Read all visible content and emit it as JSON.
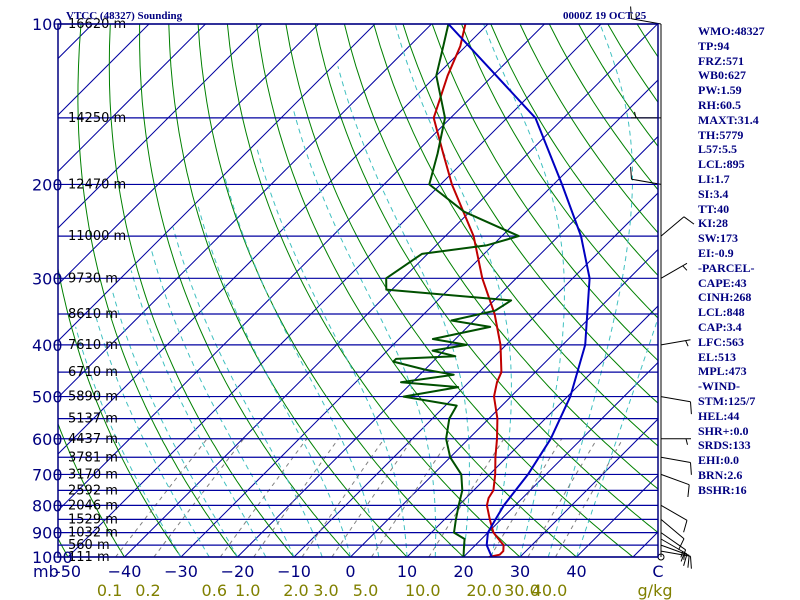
{
  "header": {
    "title": "VTCC (48327) Sounding",
    "time": "0000Z 19 OCT 25"
  },
  "colors": {
    "frame": "#000080",
    "isobar": "#0000a0",
    "isotherm": "#0000a0",
    "dry_adiabat": "#008000",
    "moist_adiabat": "#40c0c0",
    "mixing_ratio": "#808080",
    "temperature": "#c00000",
    "dewpoint": "#005000",
    "parcel": "#0000c0",
    "wind_barb": "#000000",
    "mixing_label": "#808000"
  },
  "chart_data": {
    "type": "skew-t",
    "pressure_levels": [
      100,
      200,
      300,
      400,
      500,
      600,
      700,
      800,
      900,
      1000
    ],
    "pressure_tick_labels": [
      "100",
      "200",
      "300",
      "400",
      "500",
      "600",
      "700",
      "800",
      "900",
      "1000"
    ],
    "pressure_unit": "mb",
    "temperature_ticks": [
      -50,
      -40,
      -30,
      -20,
      -10,
      0,
      10,
      20,
      30,
      40
    ],
    "temperature_tick_labels": [
      "-50",
      "−40",
      "−30",
      "−20",
      "−10",
      "0",
      "10",
      "20",
      "30",
      "40"
    ],
    "temperature_unit": "C",
    "mixing_ratio_labels": [
      "0.1",
      "0.2",
      "0.6",
      "1.0",
      "2.0",
      "3.0",
      "5.0",
      "10.0",
      "20.0",
      "30.0",
      "40.0"
    ],
    "mixing_ratio_unit": "g/kg",
    "height_labels": [
      {
        "p": 100,
        "label": "16620 m"
      },
      {
        "p": 150,
        "label": "14250 m"
      },
      {
        "p": 200,
        "label": "12470 m"
      },
      {
        "p": 250,
        "label": "11000 m"
      },
      {
        "p": 300,
        "label": "9730 m"
      },
      {
        "p": 350,
        "label": "8610 m"
      },
      {
        "p": 400,
        "label": "7610 m"
      },
      {
        "p": 450,
        "label": "6710 m"
      },
      {
        "p": 500,
        "label": "5890 m"
      },
      {
        "p": 550,
        "label": "5137 m"
      },
      {
        "p": 600,
        "label": "4437 m"
      },
      {
        "p": 650,
        "label": "3781 m"
      },
      {
        "p": 700,
        "label": "3170 m"
      },
      {
        "p": 750,
        "label": "2592 m"
      },
      {
        "p": 800,
        "label": "2046 m"
      },
      {
        "p": 850,
        "label": "1529 m"
      },
      {
        "p": 900,
        "label": "1032 m"
      },
      {
        "p": 950,
        "label": "560 m"
      },
      {
        "p": 1000,
        "label": "111 m"
      }
    ],
    "series": [
      {
        "name": "Temperature",
        "points": [
          [
            1000,
            24.5
          ],
          [
            990,
            26
          ],
          [
            975,
            26
          ],
          [
            950,
            25
          ],
          [
            925,
            23
          ],
          [
            900,
            21
          ],
          [
            875,
            19.5
          ],
          [
            850,
            18
          ],
          [
            800,
            15
          ],
          [
            775,
            14
          ],
          [
            750,
            13.5
          ],
          [
            700,
            11
          ],
          [
            650,
            8
          ],
          [
            600,
            5
          ],
          [
            550,
            1.5
          ],
          [
            500,
            -3
          ],
          [
            470,
            -5
          ],
          [
            450,
            -6
          ],
          [
            400,
            -11
          ],
          [
            350,
            -17.5
          ],
          [
            300,
            -26
          ],
          [
            250,
            -35
          ],
          [
            200,
            -48
          ],
          [
            175,
            -55
          ],
          [
            150,
            -63
          ],
          [
            125,
            -68
          ],
          [
            110,
            -71
          ],
          [
            100,
            -74
          ]
        ]
      },
      {
        "name": "Dewpoint",
        "points": [
          [
            1000,
            20
          ],
          [
            950,
            18
          ],
          [
            925,
            17
          ],
          [
            900,
            14
          ],
          [
            850,
            12
          ],
          [
            800,
            10
          ],
          [
            750,
            8
          ],
          [
            700,
            5
          ],
          [
            650,
            0
          ],
          [
            600,
            -4
          ],
          [
            550,
            -7
          ],
          [
            520,
            -8
          ],
          [
            500,
            -19
          ],
          [
            490,
            -15
          ],
          [
            480,
            -11
          ],
          [
            470,
            -22
          ],
          [
            455,
            -14
          ],
          [
            445,
            -20
          ],
          [
            430,
            -27
          ],
          [
            425,
            -27
          ],
          [
            420,
            -17
          ],
          [
            410,
            -22
          ],
          [
            400,
            -17
          ],
          [
            390,
            -24
          ],
          [
            370,
            -16
          ],
          [
            360,
            -24
          ],
          [
            345,
            -18
          ],
          [
            330,
            -17
          ],
          [
            315,
            -41
          ],
          [
            300,
            -43
          ],
          [
            270,
            -41
          ],
          [
            260,
            -31
          ],
          [
            250,
            -27
          ],
          [
            225,
            -41
          ],
          [
            200,
            -52
          ],
          [
            175,
            -56
          ],
          [
            150,
            -61
          ],
          [
            125,
            -70
          ],
          [
            110,
            -74
          ],
          [
            100,
            -77
          ]
        ]
      },
      {
        "name": "Parcel",
        "points": [
          [
            1000,
            25
          ],
          [
            950,
            22
          ],
          [
            900,
            20
          ],
          [
            850,
            19
          ],
          [
            800,
            18
          ],
          [
            700,
            16.8
          ],
          [
            600,
            14.5
          ],
          [
            500,
            10.5
          ],
          [
            400,
            4
          ],
          [
            300,
            -7
          ],
          [
            250,
            -16
          ],
          [
            200,
            -28.5
          ],
          [
            150,
            -45
          ],
          [
            100,
            -77
          ]
        ]
      }
    ],
    "winds": [
      {
        "p": 1000,
        "dir": 0,
        "spd": 0
      },
      {
        "p": 975,
        "dir": 100,
        "spd": 10
      },
      {
        "p": 950,
        "dir": 110,
        "spd": 15
      },
      {
        "p": 925,
        "dir": 120,
        "spd": 15
      },
      {
        "p": 900,
        "dir": 125,
        "spd": 10
      },
      {
        "p": 850,
        "dir": 130,
        "spd": 10
      },
      {
        "p": 800,
        "dir": 120,
        "spd": 10
      },
      {
        "p": 700,
        "dir": 110,
        "spd": 10
      },
      {
        "p": 650,
        "dir": 100,
        "spd": 10
      },
      {
        "p": 600,
        "dir": 90,
        "spd": 5
      },
      {
        "p": 500,
        "dir": 100,
        "spd": 10
      },
      {
        "p": 400,
        "dir": 80,
        "spd": 5
      },
      {
        "p": 300,
        "dir": 60,
        "spd": 5
      },
      {
        "p": 250,
        "dir": 50,
        "spd": 10
      },
      {
        "p": 200,
        "dir": 280,
        "spd": 10
      },
      {
        "p": 150,
        "dir": 270,
        "spd": 5
      },
      {
        "p": 100,
        "dir": 280,
        "spd": 15
      }
    ]
  },
  "stats": [
    "WMO:48327",
    "TP:94",
    "FRZ:571",
    "WB0:627",
    "PW:1.59",
    "RH:60.5",
    "MAXT:31.4",
    "TH:5779",
    "L57:5.5",
    "LCL:895",
    "LI:1.7",
    "SI:3.4",
    "TT:40",
    "KI:28",
    "SW:173",
    "EI:-0.9",
    "-PARCEL-",
    "CAPE:43",
    "CINH:268",
    "LCL:848",
    "CAP:3.4",
    "LFC:563",
    "EL:513",
    "MPL:473",
    "-WIND-",
    "STM:125/7",
    "HEL:44",
    "SHR+:0.0",
    "SRDS:133",
    "EHI:0.0",
    "BRN:2.6",
    "BSHR:16"
  ]
}
